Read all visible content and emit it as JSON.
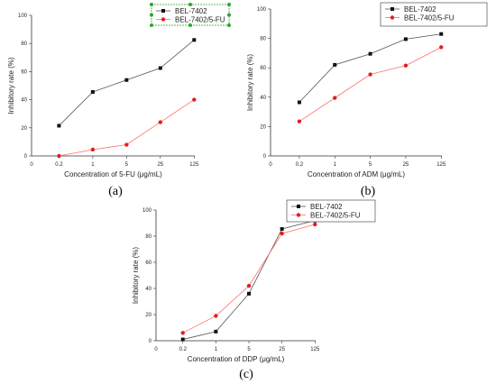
{
  "colors": {
    "black_series": "#111111",
    "red_series": "#e02020",
    "axis": "#333333"
  },
  "chart_data": [
    {
      "type": "line",
      "panel_label": "(a)",
      "categories": [
        "0.2",
        "1",
        "5",
        "25",
        "125"
      ],
      "x_zero_label": "0",
      "xlabel": "Concentration of 5-FU (μg/mL)",
      "ylabel": "Inhibitory rate (%)",
      "ylim": [
        0,
        100
      ],
      "yticks": [
        0,
        20,
        40,
        60,
        80,
        100
      ],
      "legend_position": "top-center",
      "legend_selected": true,
      "series": [
        {
          "name": "BEL-7402",
          "values": [
            21.5,
            45.5,
            54,
            62.5,
            82.5
          ]
        },
        {
          "name": "BEL-7402/5-FU",
          "values": [
            0,
            4.5,
            8,
            24,
            40
          ]
        }
      ]
    },
    {
      "type": "line",
      "panel_label": "(b)",
      "categories": [
        "0.2",
        "1",
        "5",
        "25",
        "125"
      ],
      "x_zero_label": "0",
      "xlabel": "Concentration of  ADM (μg/mL)",
      "ylabel": "Inhibitory rate (%)",
      "ylim": [
        0,
        100
      ],
      "yticks": [
        0,
        20,
        40,
        60,
        80,
        100
      ],
      "legend_position": "top-right",
      "legend_selected": false,
      "series": [
        {
          "name": "BEL-7402",
          "values": [
            36.5,
            62,
            69.5,
            79.5,
            83
          ]
        },
        {
          "name": "BEL-7402/5-FU",
          "values": [
            23.5,
            39.5,
            55.5,
            61.5,
            74
          ]
        }
      ]
    },
    {
      "type": "line",
      "panel_label": "(c)",
      "categories": [
        "0.2",
        "1",
        "5",
        "25",
        "125"
      ],
      "x_zero_label": "0",
      "xlabel": "Concentration of DDP (μg/mL)",
      "ylabel": "Inhibitory rate (%)",
      "ylim": [
        0,
        100
      ],
      "yticks": [
        0,
        20,
        40,
        60,
        80,
        100
      ],
      "legend_position": "top-right",
      "legend_selected": false,
      "series": [
        {
          "name": "BEL-7402",
          "values": [
            1,
            7,
            36,
            85.5,
            92
          ]
        },
        {
          "name": "BEL-7402/5-FU",
          "values": [
            6,
            19,
            42,
            82,
            89
          ]
        }
      ]
    }
  ]
}
